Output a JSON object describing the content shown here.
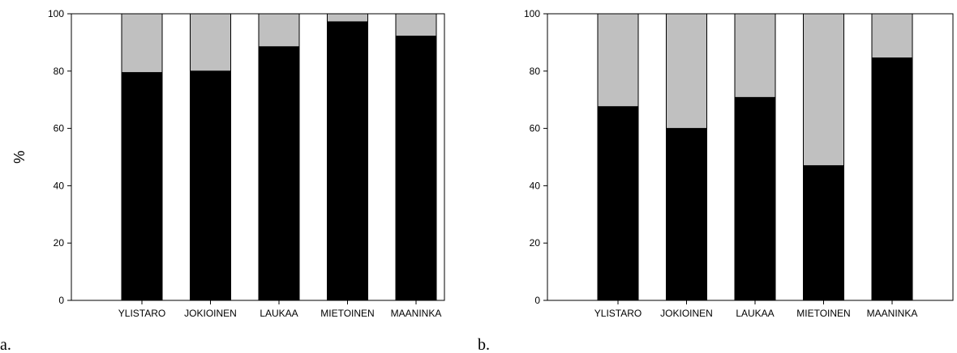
{
  "chart_data": [
    {
      "type": "bar",
      "stacked": true,
      "panel_label": "a.",
      "ylabel": "%",
      "ylim": [
        0,
        100
      ],
      "yticks": [
        0,
        20,
        40,
        60,
        80,
        100
      ],
      "categories": [
        "YLISTARO",
        "JOKIOINEN",
        "LAUKAA",
        "MIETOINEN",
        "MAANINKA"
      ],
      "series": [
        {
          "color": "#000000",
          "values": [
            79.5,
            80,
            88.5,
            97.2,
            92.2
          ]
        },
        {
          "color": "#c0c0c0",
          "values": [
            20.5,
            20,
            11.5,
            2.8,
            7.8
          ]
        }
      ],
      "grid": false,
      "legend": false
    },
    {
      "type": "bar",
      "stacked": true,
      "panel_label": "b.",
      "ylabel": "",
      "ylim": [
        0,
        100
      ],
      "yticks": [
        0,
        20,
        40,
        60,
        80,
        100
      ],
      "categories": [
        "YLISTARO",
        "JOKIOINEN",
        "LAUKAA",
        "MIETOINEN",
        "MAANINKA"
      ],
      "series": [
        {
          "color": "#000000",
          "values": [
            67.6,
            60,
            70.8,
            47,
            84.6
          ]
        },
        {
          "color": "#c0c0c0",
          "values": [
            32.4,
            40,
            29.2,
            53,
            15.4
          ]
        }
      ],
      "grid": false,
      "legend": false
    }
  ]
}
